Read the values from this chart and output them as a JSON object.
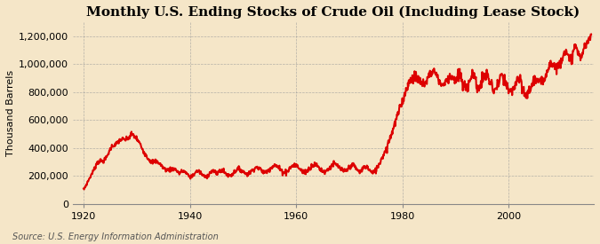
{
  "title": "Monthly U.S. Ending Stocks of Crude Oil (Including Lease Stock)",
  "ylabel": "Thousand Barrels",
  "source": "Source: U.S. Energy Information Administration",
  "line_color": "#dd0000",
  "background_color": "#f5e6c8",
  "plot_bg_color": "#f5e6c8",
  "grid_color": "#999999",
  "xlim": [
    1918,
    2016
  ],
  "ylim": [
    0,
    1300000
  ],
  "xticks": [
    1920,
    1940,
    1960,
    1980,
    2000
  ],
  "yticks": [
    0,
    200000,
    400000,
    600000,
    800000,
    1000000,
    1200000
  ],
  "ytick_labels": [
    "0",
    "200,000",
    "400,000",
    "600,000",
    "800,000",
    "1,000,000",
    "1,200,000"
  ],
  "title_fontsize": 11,
  "tick_fontsize": 8,
  "ylabel_fontsize": 8,
  "source_fontsize": 7,
  "line_width": 1.5
}
